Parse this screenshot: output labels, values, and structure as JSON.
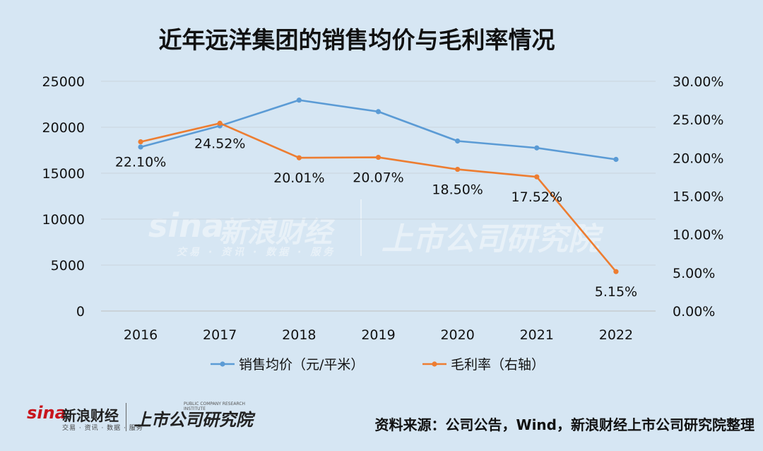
{
  "title": "近年远洋集团的销售均价与毛利率情况",
  "watermark": {
    "sina": "sina",
    "cn": "新浪财经",
    "sub": "交易 · 资讯 · 数据 · 服务",
    "institute": "上市公司研究院",
    "institute_en": "PUBLIC COMPANY RESEARCH INSTITUTE"
  },
  "source": "资料来源：公司公告，Wind，新浪财经上市公司研究院整理",
  "chart_data": {
    "type": "line",
    "categories": [
      "2016",
      "2017",
      "2018",
      "2019",
      "2020",
      "2021",
      "2022"
    ],
    "left_axis": {
      "ticks": [
        "0",
        "5000",
        "10000",
        "15000",
        "20000",
        "25000"
      ],
      "ylim": [
        0,
        25000
      ]
    },
    "right_axis": {
      "ticks": [
        "0.00%",
        "5.00%",
        "10.00%",
        "15.00%",
        "20.00%",
        "25.00%",
        "30.00%"
      ],
      "ylim": [
        0,
        30
      ]
    },
    "series": [
      {
        "name": "销售均价（元/平米）",
        "axis": "left",
        "color": "#5b9bd5",
        "values": [
          17850,
          20150,
          22950,
          21700,
          18500,
          17750,
          16500
        ]
      },
      {
        "name": "毛利率（右轴）",
        "axis": "right",
        "color": "#ed7d31",
        "values": [
          22.1,
          24.52,
          20.01,
          20.07,
          18.5,
          17.52,
          5.15
        ],
        "labels": [
          "22.10%",
          "24.52%",
          "20.01%",
          "20.07%",
          "18.50%",
          "17.52%",
          "5.15%"
        ]
      }
    ],
    "legend_position": "bottom",
    "grid": true
  }
}
